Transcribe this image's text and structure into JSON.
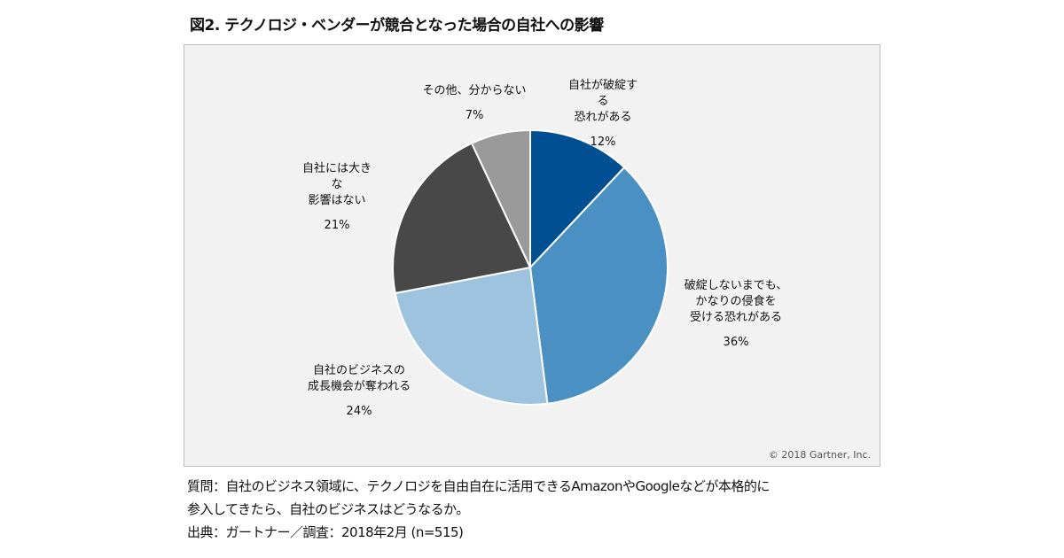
{
  "title": "図2. テクノロジ・ベンダーが競合となった場合の自社への影響",
  "chart_data": {
    "type": "pie",
    "title": "図2. テクノロジ・ベンダーが競合となった場合の自社への影響",
    "categories": [
      "自社が破綻する恐れがある",
      "破綻しないまでも、かなりの侵食を受ける恐れがある",
      "自社のビジネスの成長機会が奪われる",
      "自社には大きな影響はない",
      "その他、分からない"
    ],
    "values": [
      12,
      36,
      24,
      21,
      7
    ],
    "labels": [
      "12%",
      "36%",
      "24%",
      "21%",
      "7%"
    ],
    "colors": [
      "#004f93",
      "#4a90c2",
      "#9ec3de",
      "#484848",
      "#9a9a9a"
    ]
  },
  "copyright": "© 2018 Gartner, Inc.",
  "footer": {
    "question1": "質問：自社のビジネス領域に、テクノロジを自由自在に活用できるAmazonやGoogleなどが本格的に",
    "question2": "参入してきたら、自社のビジネスはどうなるか。",
    "source": "出典：ガートナー／調査：2018年2月 (n=515)"
  }
}
